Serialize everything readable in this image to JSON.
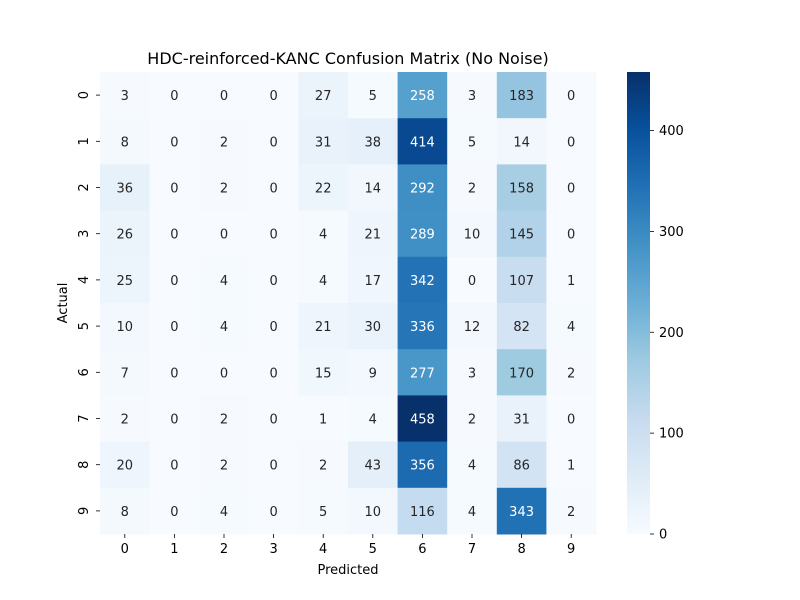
{
  "chart_data": {
    "type": "heatmap",
    "title": "HDC-reinforced-KANC Confusion Matrix (No Noise)",
    "xlabel": "Predicted",
    "ylabel": "Actual",
    "x_categories": [
      "0",
      "1",
      "2",
      "3",
      "4",
      "5",
      "6",
      "7",
      "8",
      "9"
    ],
    "y_categories": [
      "0",
      "1",
      "2",
      "3",
      "4",
      "5",
      "6",
      "7",
      "8",
      "9"
    ],
    "values": [
      [
        3,
        0,
        0,
        0,
        27,
        5,
        258,
        3,
        183,
        0
      ],
      [
        8,
        0,
        2,
        0,
        31,
        38,
        414,
        5,
        14,
        0
      ],
      [
        36,
        0,
        2,
        0,
        22,
        14,
        292,
        2,
        158,
        0
      ],
      [
        26,
        0,
        0,
        0,
        4,
        21,
        289,
        10,
        145,
        0
      ],
      [
        25,
        0,
        4,
        0,
        4,
        17,
        342,
        0,
        107,
        1
      ],
      [
        10,
        0,
        4,
        0,
        21,
        30,
        336,
        12,
        82,
        4
      ],
      [
        7,
        0,
        0,
        0,
        15,
        9,
        277,
        3,
        170,
        2
      ],
      [
        2,
        0,
        2,
        0,
        1,
        4,
        458,
        2,
        31,
        0
      ],
      [
        20,
        0,
        2,
        0,
        2,
        43,
        356,
        4,
        86,
        1
      ],
      [
        8,
        0,
        4,
        0,
        5,
        10,
        116,
        4,
        343,
        2
      ]
    ],
    "colormap": "Blues",
    "colorbar": {
      "vmin": 0,
      "vmax": 458,
      "ticks": [
        0,
        100,
        200,
        300,
        400
      ]
    },
    "grid": false,
    "legend": "none"
  }
}
